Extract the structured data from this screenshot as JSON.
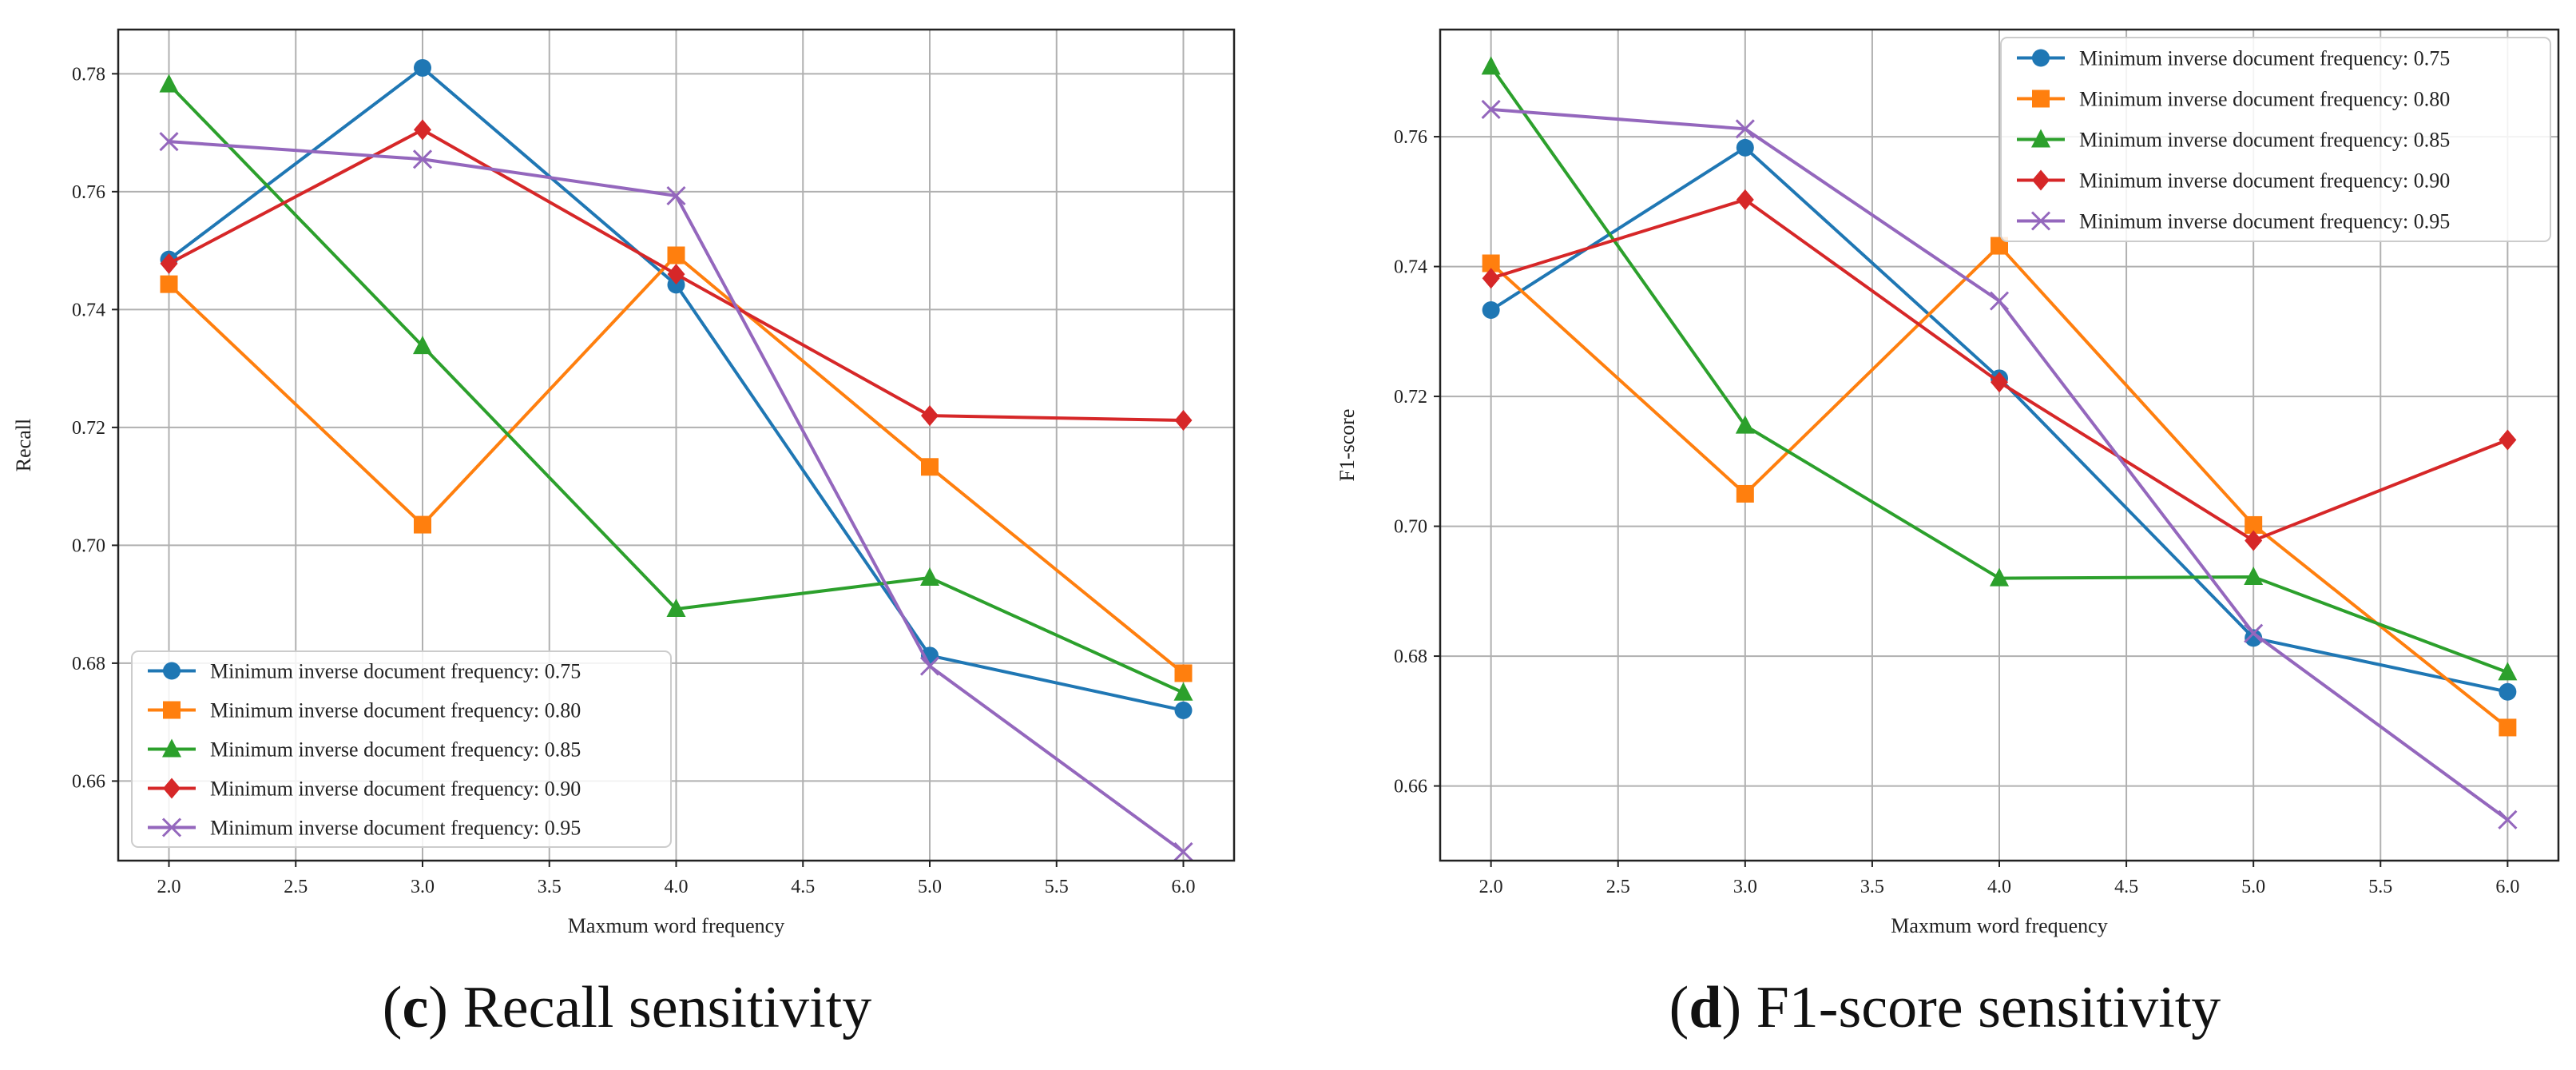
{
  "chart_data": [
    {
      "type": "line",
      "panel": "c",
      "caption_letter": "c",
      "caption_paren_open": "(",
      "caption_paren_close": ")",
      "caption_text": " Recall sensitivity",
      "xlabel": "Maxmum word frequency",
      "ylabel": "Recall",
      "xlim": [
        1.8,
        6.2
      ],
      "ylim": [
        0.6465,
        0.7875
      ],
      "xticks": [
        2.0,
        2.5,
        3.0,
        3.5,
        4.0,
        4.5,
        5.0,
        5.5,
        6.0
      ],
      "xtick_labels": [
        "2.0",
        "2.5",
        "3.0",
        "3.5",
        "4.0",
        "4.5",
        "5.0",
        "5.5",
        "6.0"
      ],
      "yticks": [
        0.66,
        0.68,
        0.7,
        0.72,
        0.74,
        0.76,
        0.78
      ],
      "ytick_labels": [
        "0.66",
        "0.68",
        "0.70",
        "0.72",
        "0.74",
        "0.76",
        "0.78"
      ],
      "grid": true,
      "legend_position": "lower-left",
      "x": [
        2.0,
        3.0,
        4.0,
        5.0,
        6.0
      ],
      "series": [
        {
          "name": "Minimum inverse document frequency: 0.75",
          "values": [
            0.7485,
            0.781,
            0.7442,
            0.6813,
            0.672
          ],
          "color": "#1f77b4",
          "marker": "circle"
        },
        {
          "name": "Minimum inverse document frequency: 0.80",
          "values": [
            0.7443,
            0.7035,
            0.7492,
            0.7133,
            0.6783
          ],
          "color": "#ff7f0e",
          "marker": "square"
        },
        {
          "name": "Minimum inverse document frequency: 0.85",
          "values": [
            0.7782,
            0.7338,
            0.6892,
            0.6945,
            0.675
          ],
          "color": "#2ca02c",
          "marker": "triangle"
        },
        {
          "name": "Minimum inverse document frequency: 0.90",
          "values": [
            0.7478,
            0.7705,
            0.746,
            0.722,
            0.7212
          ],
          "color": "#d62728",
          "marker": "diamond"
        },
        {
          "name": "Minimum inverse document frequency: 0.95",
          "values": [
            0.7685,
            0.7655,
            0.7593,
            0.6795,
            0.648
          ],
          "color": "#9467bd",
          "marker": "x"
        }
      ]
    },
    {
      "type": "line",
      "panel": "d",
      "caption_letter": "d",
      "caption_paren_open": "(",
      "caption_paren_close": ")",
      "caption_text": " F1-score sensitivity",
      "xlabel": "Maxmum word frequency",
      "ylabel": "F1-score",
      "xlim": [
        1.8,
        6.2
      ],
      "ylim": [
        0.6485,
        0.7765
      ],
      "xticks": [
        2.0,
        2.5,
        3.0,
        3.5,
        4.0,
        4.5,
        5.0,
        5.5,
        6.0
      ],
      "xtick_labels": [
        "2.0",
        "2.5",
        "3.0",
        "3.5",
        "4.0",
        "4.5",
        "5.0",
        "5.5",
        "6.0"
      ],
      "yticks": [
        0.66,
        0.68,
        0.7,
        0.72,
        0.74,
        0.76
      ],
      "ytick_labels": [
        "0.66",
        "0.68",
        "0.70",
        "0.72",
        "0.74",
        "0.76"
      ],
      "grid": true,
      "legend_position": "top-right",
      "x": [
        2.0,
        3.0,
        4.0,
        5.0,
        6.0
      ],
      "series": [
        {
          "name": "Minimum inverse document frequency: 0.75",
          "values": [
            0.7333,
            0.7583,
            0.7228,
            0.6828,
            0.6745
          ],
          "color": "#1f77b4",
          "marker": "circle"
        },
        {
          "name": "Minimum inverse document frequency: 0.80",
          "values": [
            0.7405,
            0.705,
            0.7432,
            0.7002,
            0.669
          ],
          "color": "#ff7f0e",
          "marker": "square"
        },
        {
          "name": "Minimum inverse document frequency: 0.85",
          "values": [
            0.7708,
            0.7155,
            0.692,
            0.6922,
            0.6775
          ],
          "color": "#2ca02c",
          "marker": "triangle"
        },
        {
          "name": "Minimum inverse document frequency: 0.90",
          "values": [
            0.7382,
            0.7503,
            0.7222,
            0.6978,
            0.7133
          ],
          "color": "#d62728",
          "marker": "diamond"
        },
        {
          "name": "Minimum inverse document frequency: 0.95",
          "values": [
            0.7642,
            0.7612,
            0.7347,
            0.6835,
            0.6548
          ],
          "color": "#9467bd",
          "marker": "x"
        }
      ]
    }
  ]
}
